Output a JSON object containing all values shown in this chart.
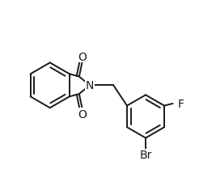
{
  "background_color": "#ffffff",
  "line_color": "#1a1a1a",
  "line_width": 1.4,
  "font_size": 10,
  "figsize": [
    2.67,
    2.26
  ],
  "dpi": 100,
  "xlim": [
    0.0,
    10.0
  ],
  "ylim": [
    0.0,
    8.5
  ]
}
